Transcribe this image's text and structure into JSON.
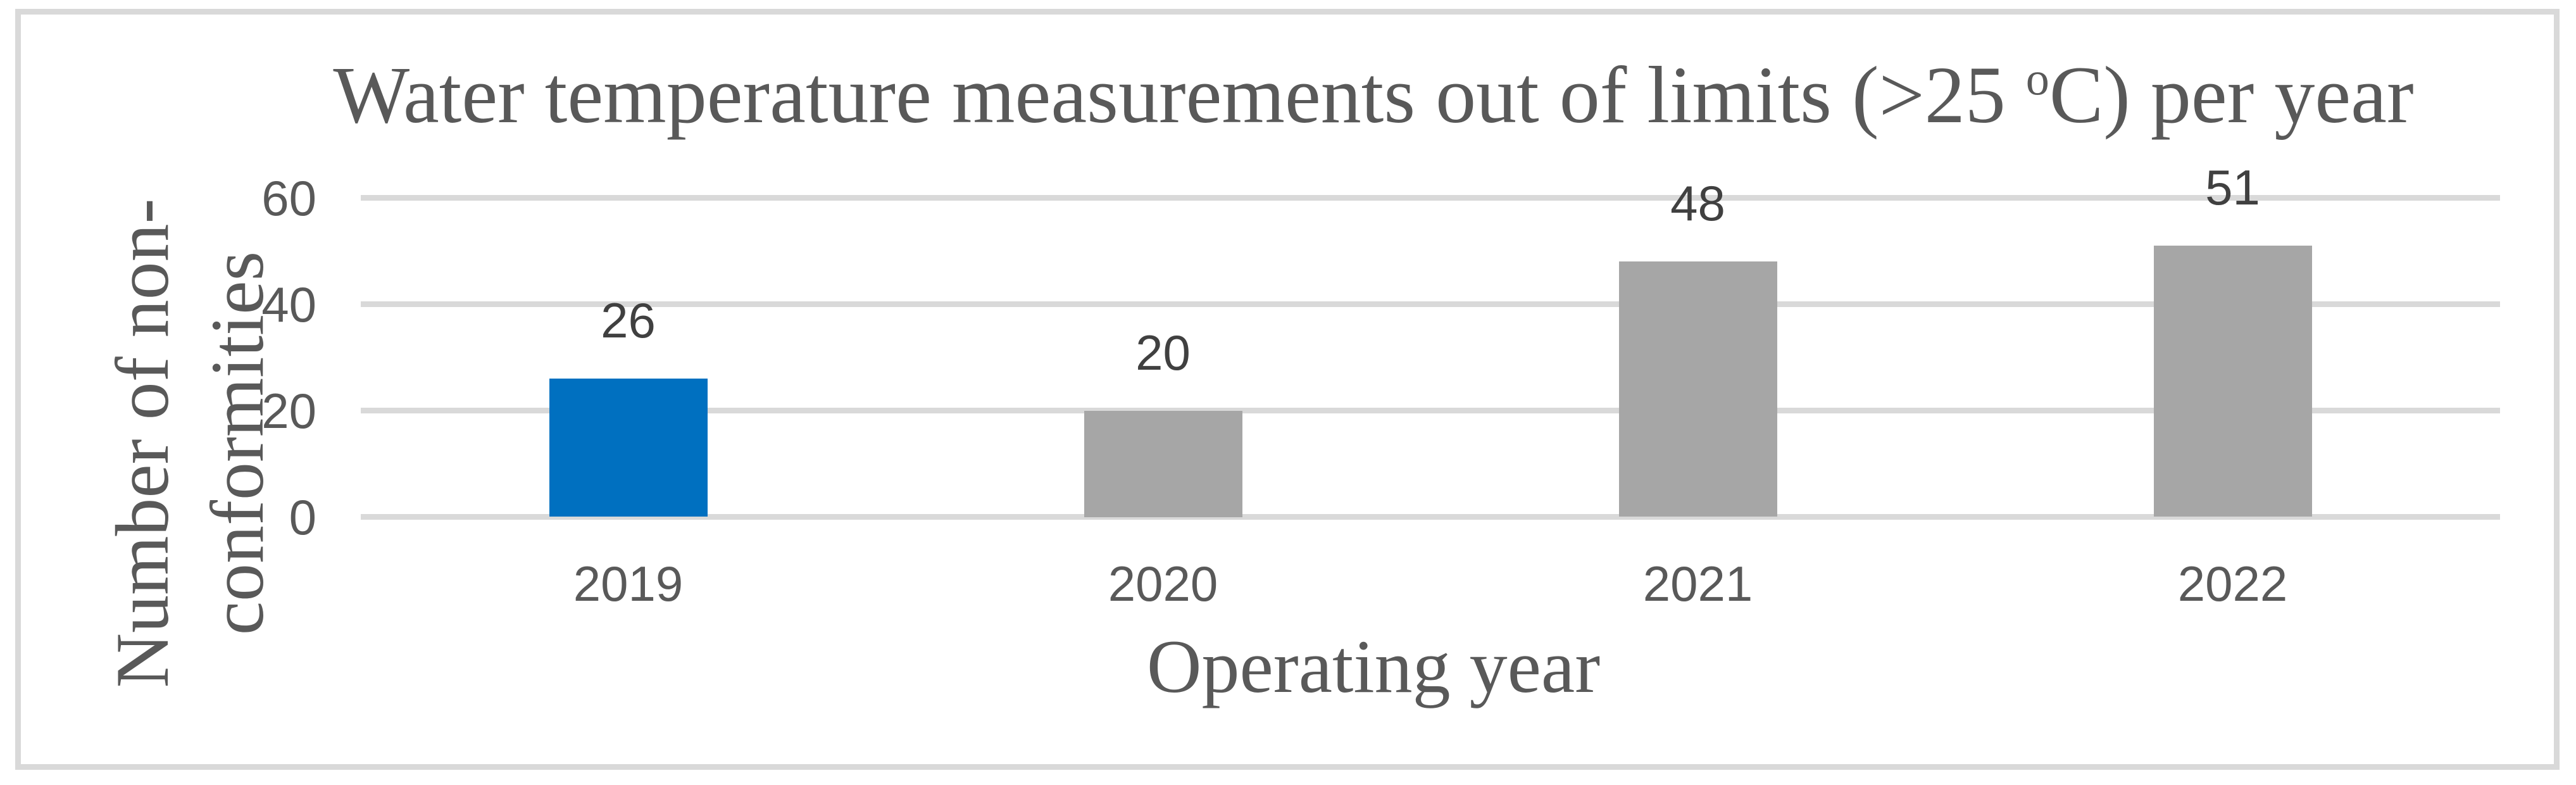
{
  "chart_data": {
    "type": "bar",
    "title": "Water temperature measurements out of limits (>25 oC) per year",
    "title_parts": {
      "prefix": "Water temperature measurements out of limits (>25 ",
      "superscript": "o",
      "suffix": "C) per year"
    },
    "categories": [
      "2019",
      "2020",
      "2021",
      "2022"
    ],
    "values": [
      26,
      20,
      48,
      51
    ],
    "data_labels": [
      "26",
      "20",
      "48",
      "51"
    ],
    "xlabel": "Operating year",
    "ylabel_lines": [
      "Number of non-",
      "conformities"
    ],
    "ylabel": "Number of non-conformities",
    "yticks": [
      60,
      40,
      20,
      0
    ],
    "ylim": [
      0,
      60
    ],
    "grid": true,
    "legend": "none",
    "bar_colors": [
      "#0070C0",
      "#A6A6A6",
      "#A6A6A6",
      "#A6A6A6"
    ]
  },
  "colors": {
    "accent_bar": "#0070C0",
    "default_bar": "#A6A6A6",
    "gridline": "#D9D9D9",
    "frame_border": "#D9D9D9",
    "title_text": "#595959",
    "axis_text": "#595959",
    "data_label_text": "#404040",
    "background": "#FFFFFF"
  }
}
